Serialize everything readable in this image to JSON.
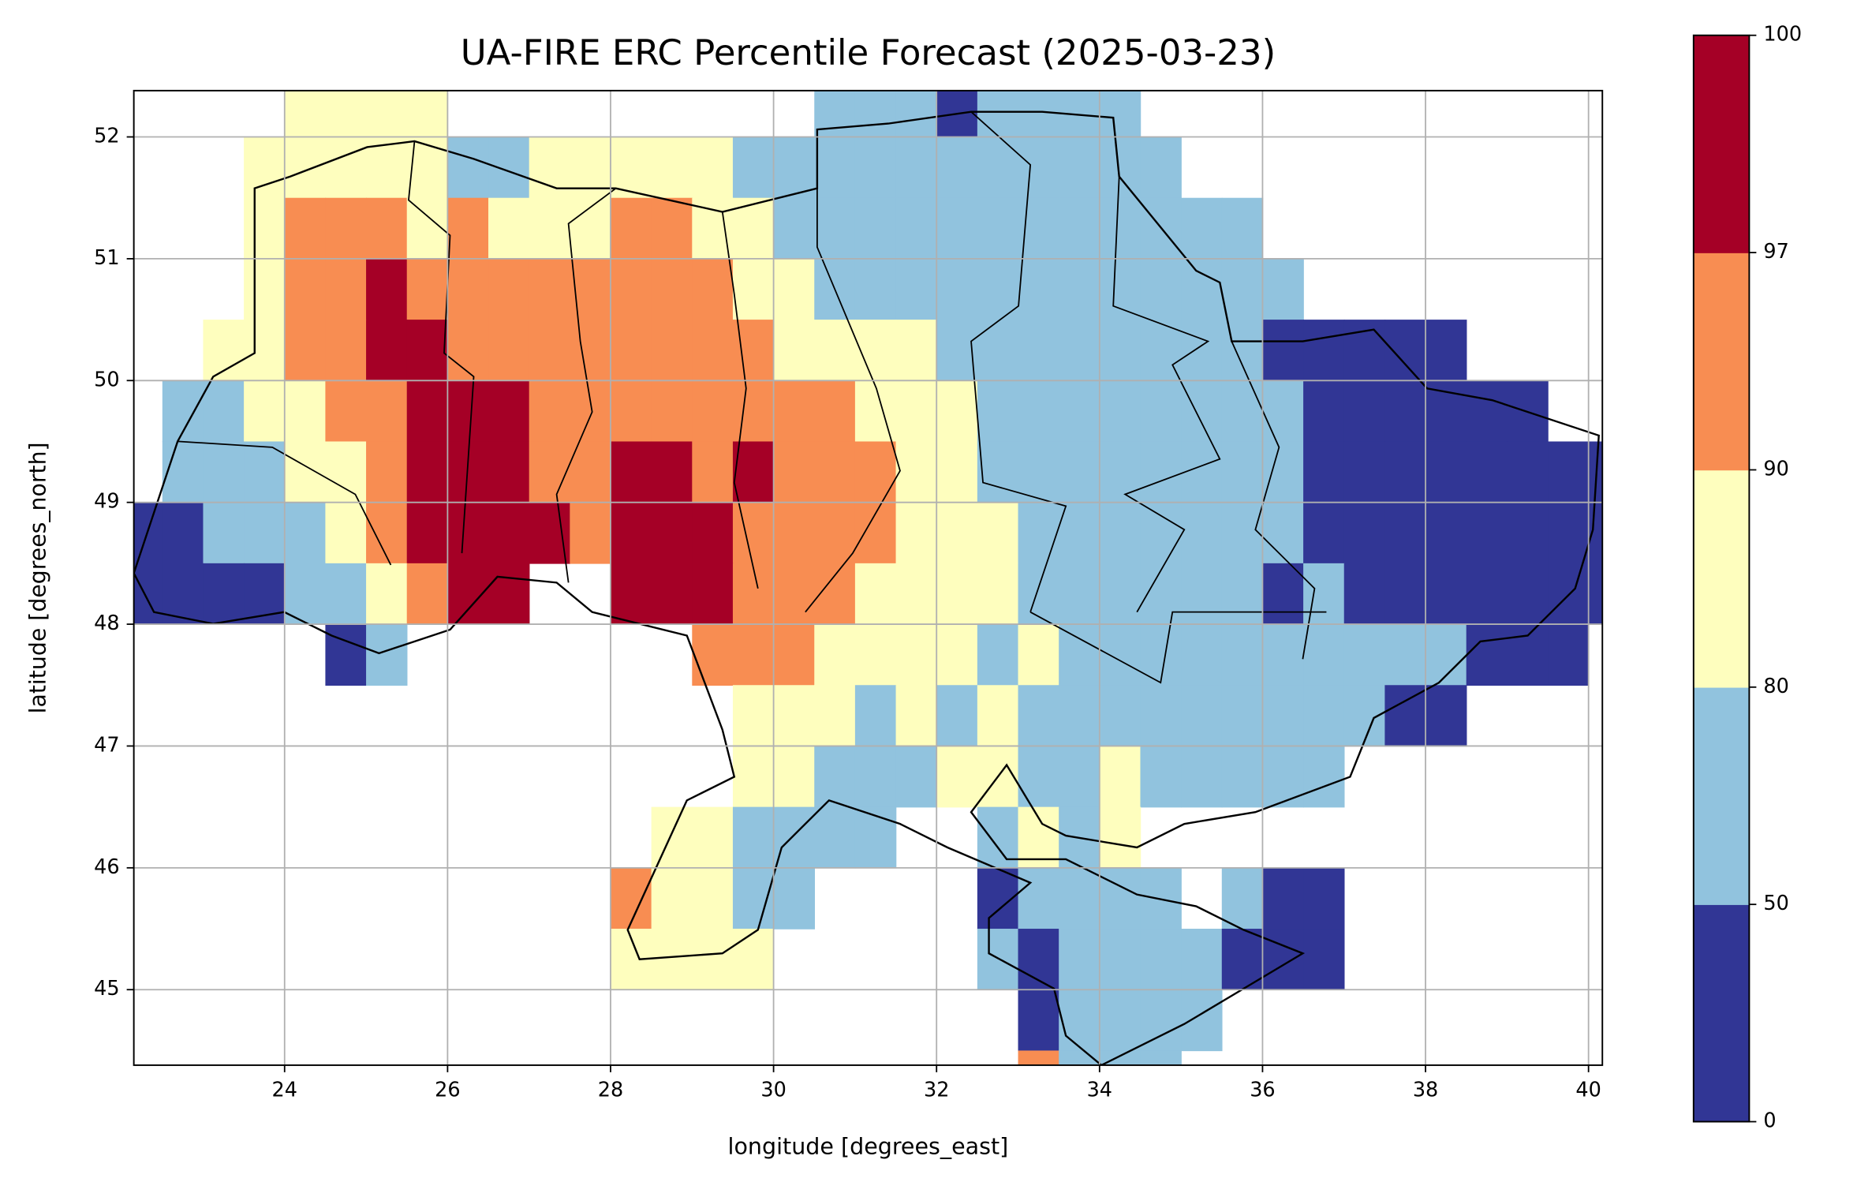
{
  "chart_data": {
    "type": "heatmap",
    "title": "UA-FIRE ERC Percentile Forecast (2025-03-23)",
    "xlabel": "longitude [degrees_east]",
    "ylabel": "latitude [degrees_north]",
    "xlim": [
      22.15,
      40.17
    ],
    "ylim": [
      44.38,
      52.38
    ],
    "xticks": [
      24,
      26,
      28,
      30,
      32,
      34,
      36,
      38,
      40
    ],
    "yticks": [
      45,
      46,
      47,
      48,
      49,
      50,
      51,
      52
    ],
    "grid": true,
    "x": [
      22.0,
      22.5,
      23.0,
      23.5,
      24.0,
      24.5,
      25.0,
      25.5,
      26.0,
      26.5,
      27.0,
      27.5,
      28.0,
      28.5,
      29.0,
      29.5,
      30.0,
      30.5,
      31.0,
      31.5,
      32.0,
      32.5,
      33.0,
      33.5,
      34.0,
      34.5,
      35.0,
      35.5,
      36.0,
      36.5,
      37.0,
      37.5,
      38.0,
      38.5,
      39.0,
      39.5,
      40.0
    ],
    "y": [
      52.0,
      51.5,
      51.0,
      50.5,
      50.0,
      49.5,
      49.0,
      48.5,
      48.0,
      47.5,
      47.0,
      46.5,
      46.0,
      45.5,
      45.0,
      44.5,
      44.0
    ],
    "values": [
      [
        null,
        null,
        null,
        null,
        85,
        85,
        85,
        85,
        null,
        null,
        null,
        null,
        null,
        null,
        null,
        null,
        null,
        65,
        65,
        65,
        25,
        65,
        65,
        65,
        65,
        null,
        null,
        null,
        null,
        null,
        null,
        null,
        null,
        null,
        null,
        null,
        null
      ],
      [
        null,
        null,
        null,
        85,
        85,
        85,
        85,
        85,
        65,
        65,
        85,
        85,
        85,
        85,
        85,
        65,
        65,
        65,
        65,
        65,
        65,
        65,
        65,
        65,
        65,
        65,
        null,
        null,
        null,
        null,
        null,
        null,
        null,
        null,
        null,
        null,
        null
      ],
      [
        null,
        null,
        null,
        85,
        93,
        93,
        93,
        85,
        93,
        85,
        85,
        85,
        93,
        93,
        85,
        85,
        65,
        65,
        65,
        65,
        65,
        65,
        65,
        65,
        65,
        65,
        65,
        65,
        null,
        null,
        null,
        null,
        null,
        null,
        null,
        null,
        null
      ],
      [
        null,
        null,
        null,
        85,
        93,
        93,
        98,
        93,
        93,
        93,
        93,
        93,
        93,
        93,
        93,
        85,
        85,
        65,
        65,
        65,
        65,
        65,
        65,
        65,
        65,
        65,
        65,
        65,
        65,
        null,
        null,
        null,
        null,
        null,
        null,
        null,
        null
      ],
      [
        null,
        null,
        85,
        85,
        93,
        93,
        98,
        98,
        93,
        93,
        93,
        93,
        93,
        93,
        93,
        93,
        85,
        85,
        85,
        85,
        65,
        65,
        65,
        65,
        65,
        65,
        65,
        65,
        25,
        25,
        25,
        25,
        25,
        null,
        null,
        null,
        null
      ],
      [
        null,
        65,
        65,
        85,
        85,
        93,
        93,
        98,
        98,
        98,
        93,
        93,
        93,
        93,
        93,
        93,
        93,
        93,
        85,
        85,
        85,
        65,
        65,
        65,
        65,
        65,
        65,
        65,
        65,
        25,
        25,
        25,
        25,
        25,
        25,
        null,
        null
      ],
      [
        null,
        65,
        65,
        65,
        85,
        85,
        93,
        98,
        98,
        98,
        93,
        93,
        98,
        98,
        93,
        98,
        93,
        93,
        93,
        85,
        85,
        65,
        65,
        65,
        65,
        65,
        65,
        65,
        65,
        25,
        25,
        25,
        25,
        25,
        25,
        25,
        25
      ],
      [
        25,
        25,
        65,
        65,
        65,
        85,
        93,
        98,
        98,
        98,
        98,
        93,
        98,
        98,
        98,
        93,
        93,
        93,
        93,
        85,
        85,
        85,
        65,
        65,
        65,
        65,
        65,
        65,
        65,
        25,
        25,
        25,
        25,
        25,
        25,
        25,
        25
      ],
      [
        25,
        25,
        25,
        25,
        65,
        65,
        85,
        93,
        98,
        98,
        null,
        null,
        98,
        98,
        98,
        93,
        93,
        93,
        85,
        85,
        85,
        85,
        65,
        65,
        65,
        65,
        65,
        65,
        25,
        65,
        25,
        25,
        25,
        25,
        25,
        25,
        25
      ],
      [
        null,
        null,
        null,
        null,
        null,
        25,
        65,
        null,
        null,
        null,
        null,
        null,
        null,
        null,
        93,
        93,
        93,
        85,
        85,
        85,
        85,
        65,
        85,
        65,
        65,
        65,
        65,
        65,
        65,
        65,
        65,
        65,
        65,
        25,
        25,
        25,
        null
      ],
      [
        null,
        null,
        null,
        null,
        null,
        null,
        null,
        null,
        null,
        null,
        null,
        null,
        null,
        null,
        null,
        85,
        85,
        85,
        65,
        85,
        65,
        85,
        65,
        65,
        65,
        65,
        65,
        65,
        65,
        65,
        65,
        25,
        25,
        null,
        null,
        null,
        null
      ],
      [
        null,
        null,
        null,
        null,
        null,
        null,
        null,
        null,
        null,
        null,
        null,
        null,
        null,
        null,
        null,
        85,
        85,
        65,
        65,
        65,
        85,
        85,
        65,
        65,
        85,
        65,
        65,
        65,
        65,
        65,
        null,
        null,
        null,
        null,
        null,
        null,
        null
      ],
      [
        null,
        null,
        null,
        null,
        null,
        null,
        null,
        null,
        null,
        null,
        null,
        null,
        null,
        85,
        85,
        65,
        65,
        65,
        65,
        null,
        null,
        65,
        85,
        65,
        85,
        null,
        null,
        null,
        null,
        null,
        null,
        null,
        null,
        null,
        null,
        null,
        null
      ],
      [
        null,
        null,
        null,
        null,
        null,
        null,
        null,
        null,
        null,
        null,
        null,
        null,
        93,
        85,
        85,
        65,
        65,
        null,
        null,
        null,
        null,
        25,
        65,
        65,
        65,
        65,
        null,
        65,
        25,
        25,
        null,
        null,
        null,
        null,
        null,
        null,
        null
      ],
      [
        null,
        null,
        null,
        null,
        null,
        null,
        null,
        null,
        null,
        null,
        null,
        null,
        85,
        85,
        85,
        85,
        null,
        null,
        null,
        null,
        null,
        65,
        25,
        65,
        65,
        65,
        65,
        25,
        25,
        25,
        null,
        null,
        null,
        null,
        null,
        null,
        null
      ],
      [
        null,
        null,
        null,
        null,
        null,
        null,
        null,
        null,
        null,
        null,
        null,
        null,
        null,
        null,
        null,
        null,
        null,
        null,
        null,
        null,
        null,
        null,
        25,
        65,
        65,
        65,
        65,
        null,
        null,
        null,
        null,
        null,
        null,
        null,
        null,
        null,
        null
      ],
      [
        null,
        null,
        null,
        null,
        null,
        null,
        null,
        null,
        null,
        null,
        null,
        null,
        null,
        null,
        null,
        null,
        null,
        null,
        null,
        null,
        null,
        null,
        93,
        65,
        65,
        65,
        null,
        null,
        null,
        null,
        null,
        null,
        null,
        null,
        null,
        null,
        null
      ]
    ],
    "colorbar": {
      "boundaries": [
        0,
        50,
        80,
        90,
        97,
        100
      ],
      "colors": [
        "#313695",
        "#91c3de",
        "#fefebe",
        "#f88d52",
        "#a50026"
      ]
    }
  }
}
